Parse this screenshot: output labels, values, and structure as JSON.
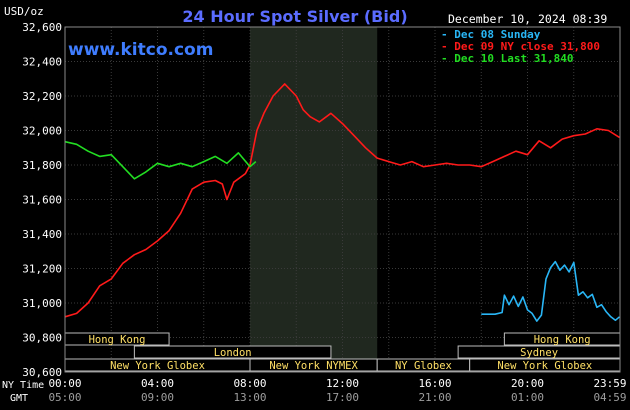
{
  "chart_data": {
    "type": "line",
    "title": "24 Hour Spot Silver (Bid)",
    "watermark": "www.kitco.com",
    "date_stamp": "December 10, 2024 08:39",
    "ylabel": "USD/oz",
    "ylim": [
      30600,
      32600
    ],
    "y_ticks": [
      "32,600",
      "32,400",
      "32,200",
      "32,000",
      "31,800",
      "31,600",
      "31,400",
      "31,200",
      "31,000",
      "30,800",
      "30,600"
    ],
    "x_tick_labels_ny": [
      "00:00",
      "04:00",
      "08:00",
      "12:00",
      "16:00",
      "20:00",
      "23:59"
    ],
    "x_tick_labels_gmt": [
      "05:00",
      "09:00",
      "13:00",
      "17:00",
      "21:00",
      "01:00",
      "04:59"
    ],
    "x_row_labels": {
      "ny": "NY Time",
      "gmt": "GMT"
    },
    "xlim_hours": [
      0,
      24
    ],
    "grid": true,
    "legend_position": "top-right",
    "shaded_session": {
      "label": "New York NYMEX",
      "start_hour": 8.0,
      "end_hour": 13.5
    },
    "series": [
      {
        "name": "Dec 08 Sunday",
        "legend": "Dec 08 Sunday",
        "color": "#29b6f6",
        "x": [
          18.0,
          18.6,
          18.9,
          19.0,
          19.2,
          19.4,
          19.6,
          19.8,
          20.0,
          20.2,
          20.4,
          20.6,
          20.8,
          21.0,
          21.2,
          21.4,
          21.6,
          21.8,
          22.0,
          22.2,
          22.4,
          22.6,
          22.8,
          23.0,
          23.2,
          23.4,
          23.6,
          23.8,
          23.98
        ],
        "y": [
          30935,
          30935,
          30945,
          31045,
          30990,
          31040,
          30980,
          31035,
          30960,
          30940,
          30895,
          30930,
          31140,
          31205,
          31240,
          31190,
          31220,
          31180,
          31235,
          31045,
          31065,
          31030,
          31050,
          30975,
          30990,
          30950,
          30920,
          30900,
          30920
        ]
      },
      {
        "name": "Dec 09 NY close 31,800",
        "legend": "Dec 09 NY close 31,800",
        "color": "#ff1a1a",
        "x": [
          0.0,
          0.5,
          1.0,
          1.5,
          2.0,
          2.5,
          3.0,
          3.5,
          4.0,
          4.5,
          5.0,
          5.5,
          6.0,
          6.5,
          6.8,
          7.0,
          7.3,
          7.5,
          7.8,
          8.0,
          8.3,
          8.6,
          9.0,
          9.5,
          10.0,
          10.3,
          10.6,
          11.0,
          11.5,
          12.0,
          12.5,
          13.0,
          13.5,
          14.0,
          14.5,
          15.0,
          15.5,
          16.0,
          16.5,
          17.0,
          17.5,
          18.0,
          18.5,
          19.0,
          19.5,
          20.0,
          20.5,
          21.0,
          21.5,
          22.0,
          22.5,
          23.0,
          23.5,
          23.98
        ],
        "y": [
          30920,
          30940,
          31000,
          31100,
          31140,
          31230,
          31280,
          31310,
          31360,
          31420,
          31520,
          31660,
          31700,
          31710,
          31690,
          31600,
          31700,
          31720,
          31750,
          31800,
          32000,
          32100,
          32200,
          32270,
          32200,
          32120,
          32080,
          32050,
          32100,
          32040,
          31970,
          31900,
          31840,
          31820,
          31800,
          31820,
          31790,
          31800,
          31810,
          31800,
          31800,
          31790,
          31820,
          31850,
          31880,
          31860,
          31940,
          31900,
          31950,
          31970,
          31980,
          32010,
          32000,
          31960
        ]
      },
      {
        "name": "Dec 10 Last 31,840",
        "legend": "Dec 10 Last 31,840",
        "color": "#22dd22",
        "x": [
          0.0,
          0.5,
          1.0,
          1.5,
          2.0,
          2.5,
          3.0,
          3.5,
          4.0,
          4.5,
          5.0,
          5.5,
          6.0,
          6.5,
          7.0,
          7.5,
          8.0,
          8.25
        ],
        "y": [
          31935,
          31920,
          31880,
          31850,
          31860,
          31790,
          31720,
          31760,
          31810,
          31790,
          31810,
          31790,
          31820,
          31850,
          31810,
          31870,
          31790,
          31820
        ]
      }
    ],
    "market_sessions": [
      {
        "label": "Hong Kong",
        "start_hour": 0.0,
        "end_hour": 4.5,
        "row": 0
      },
      {
        "label": "Hong Kong",
        "start_hour": 19.0,
        "end_hour": 24.0,
        "row": 0
      },
      {
        "label": "London",
        "start_hour": 3.0,
        "end_hour": 11.5,
        "row": 1
      },
      {
        "label": "Sydney",
        "start_hour": 17.0,
        "end_hour": 24.0,
        "row": 1
      },
      {
        "label": "New York Globex",
        "start_hour": 0.0,
        "end_hour": 8.0,
        "row": 2
      },
      {
        "label": "New York NYMEX",
        "start_hour": 8.0,
        "end_hour": 13.5,
        "row": 2
      },
      {
        "label": "NY Globex",
        "start_hour": 13.5,
        "end_hour": 17.5,
        "row": 2
      },
      {
        "label": "New York Globex",
        "start_hour": 17.5,
        "end_hour": 24.0,
        "row": 2
      }
    ]
  }
}
